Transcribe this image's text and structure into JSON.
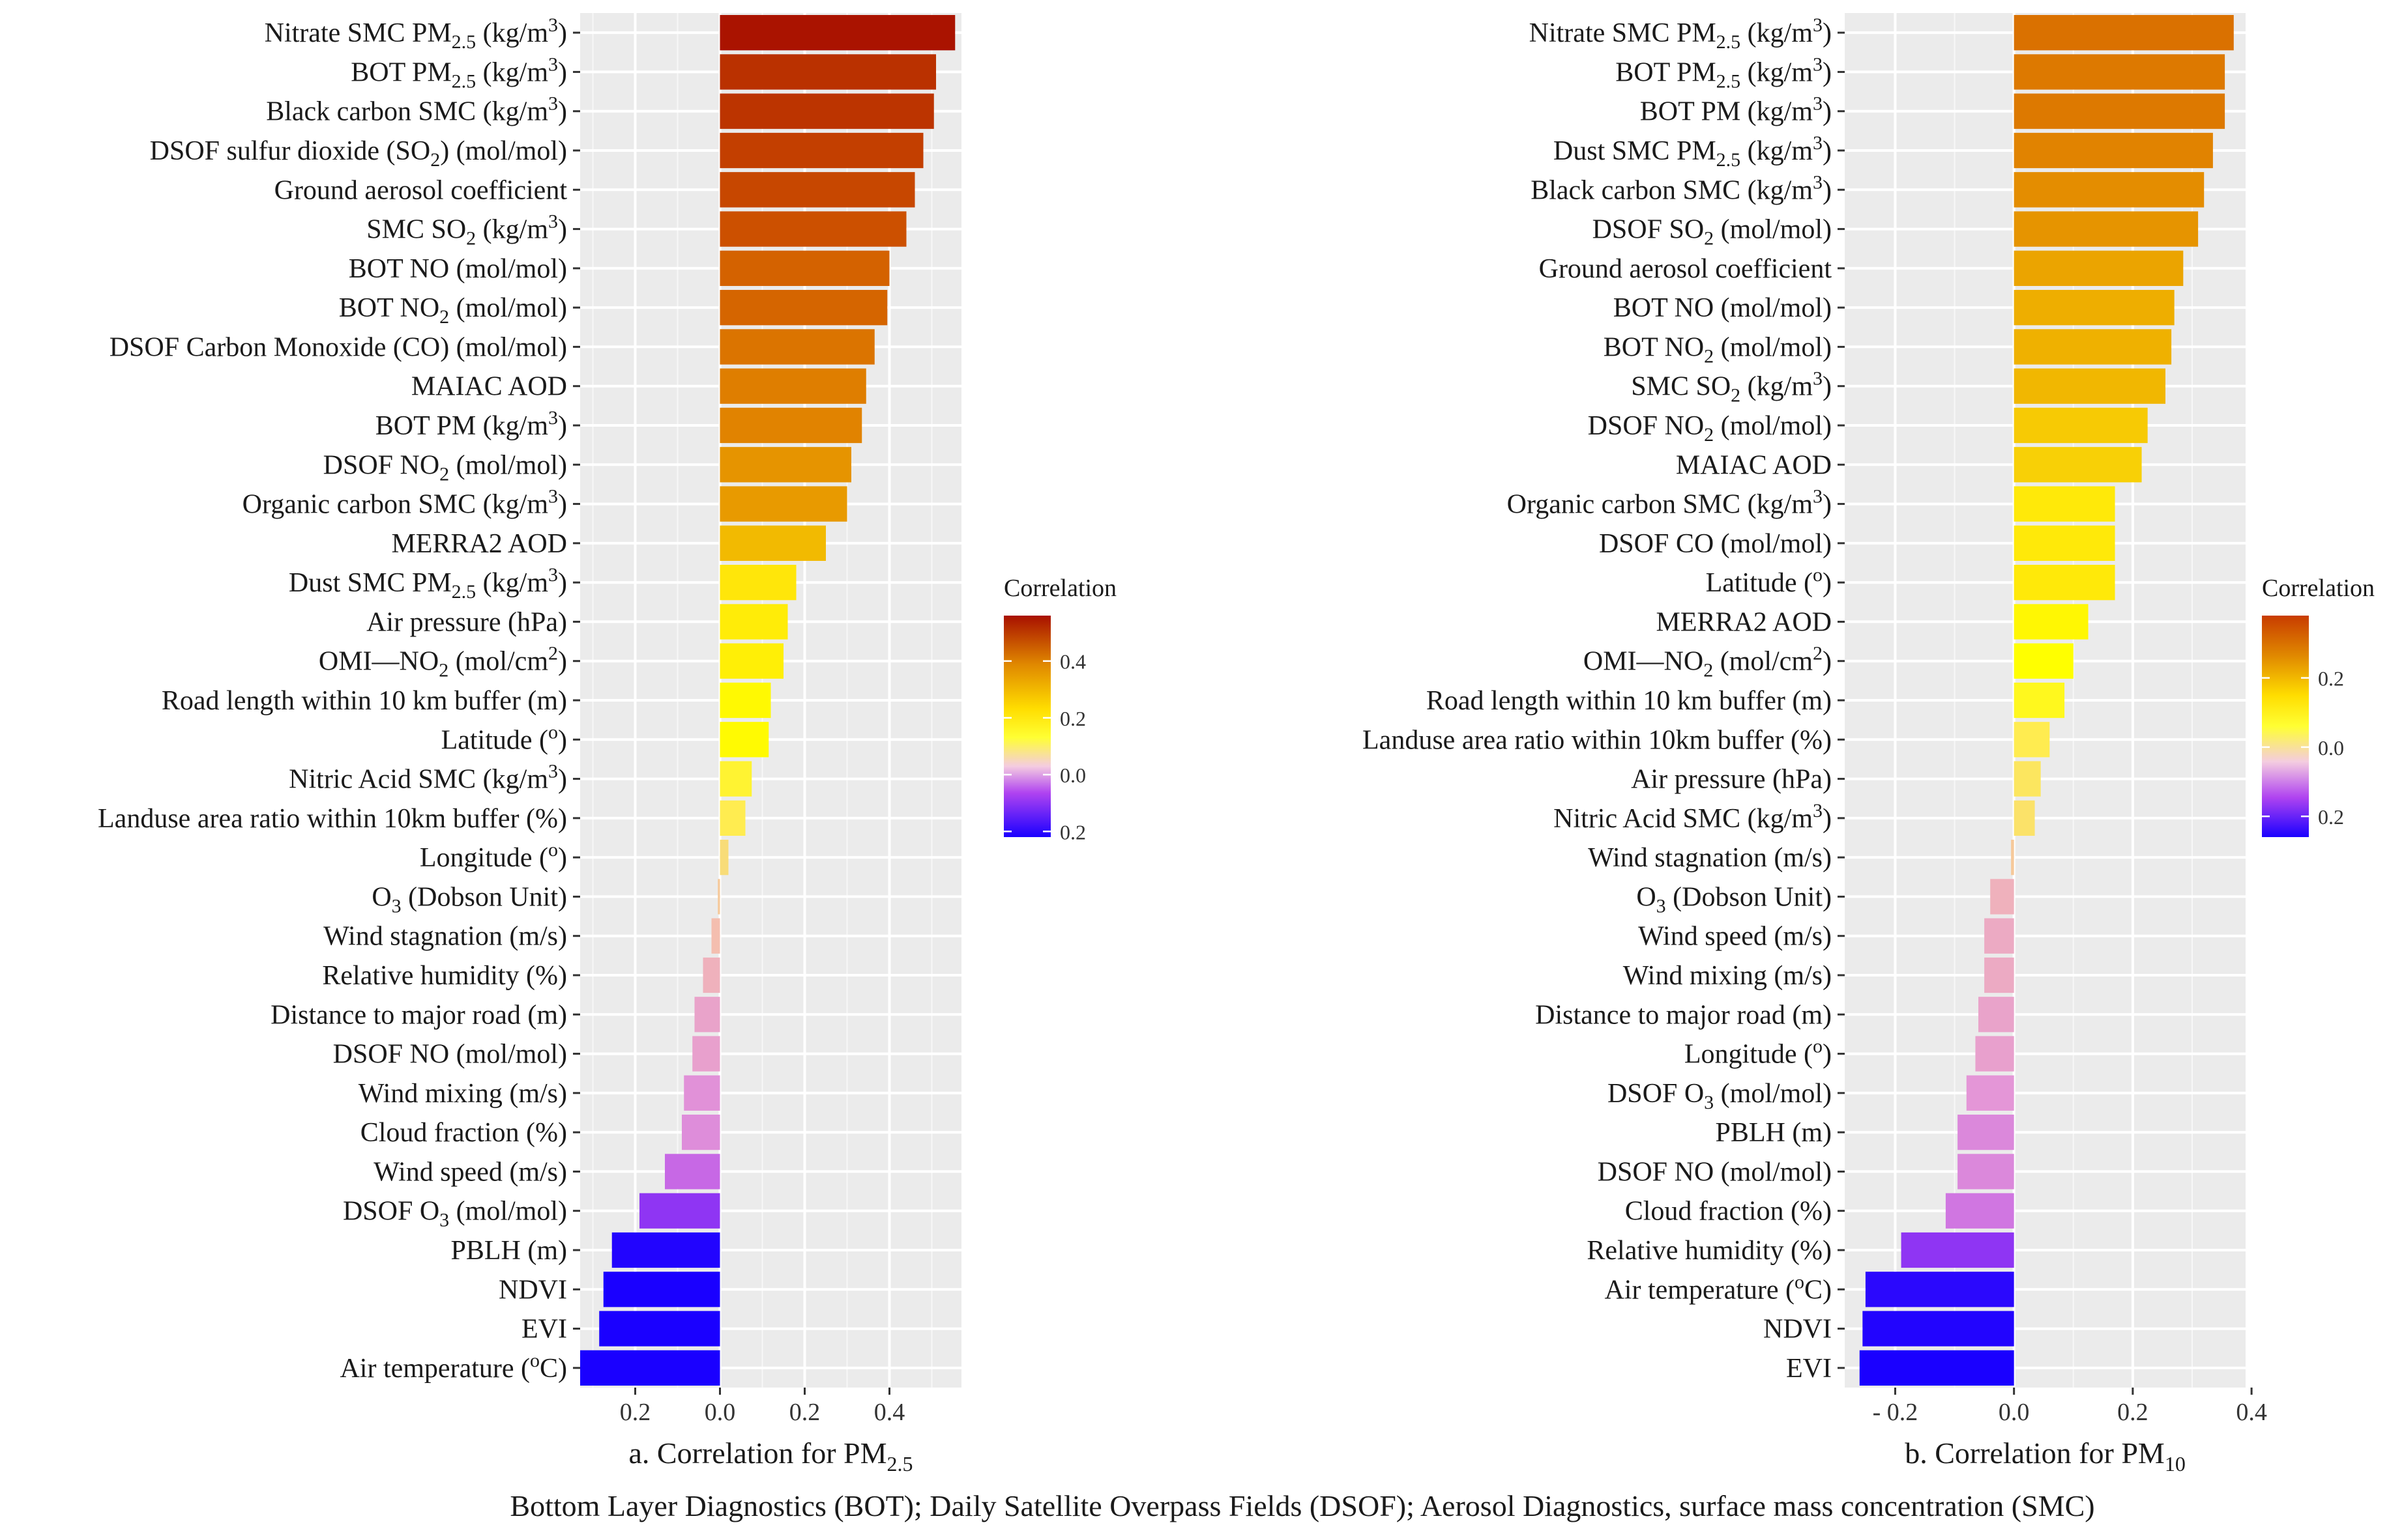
{
  "chart_data": [
    {
      "type": "bar",
      "orientation": "horizontal",
      "panel": "a",
      "xlabel": "a. Correlation for PM",
      "xlabel_sub": "2.5",
      "xlim": [
        -0.33,
        0.57
      ],
      "xticks": [
        {
          "value": -0.2,
          "label": "0.2"
        },
        {
          "value": 0.0,
          "label": "0.0"
        },
        {
          "value": 0.2,
          "label": "0.2"
        },
        {
          "value": 0.4,
          "label": "0.4"
        }
      ],
      "legend": {
        "title": "Correlation",
        "range": [
          -0.22,
          0.56
        ],
        "ticks": [
          {
            "value": 0.4,
            "label": "0.4"
          },
          {
            "value": 0.2,
            "label": "0.2"
          },
          {
            "value": 0.0,
            "label": "0.0"
          },
          {
            "value": -0.2,
            "label": "0.2"
          }
        ]
      },
      "bars": [
        {
          "label": "Nitrate SMC PM<sub>2.5</sub> (kg/m<sup>3</sup>)",
          "value": 0.555
        },
        {
          "label": "BOT PM<sub>2.5</sub> (kg/m<sup>3</sup>)",
          "value": 0.51
        },
        {
          "label": "Black carbon SMC (kg/m<sup>3</sup>)",
          "value": 0.505
        },
        {
          "label": "DSOF  sulfur dioxide (SO<sub>2</sub>) (mol/mol)",
          "value": 0.48
        },
        {
          "label": "Ground aerosol coefficient",
          "value": 0.46
        },
        {
          "label": "SMC SO<sub>2</sub> (kg/m<sup>3</sup>)",
          "value": 0.44
        },
        {
          "label": "BOT NO (mol/mol)",
          "value": 0.4
        },
        {
          "label": "BOT NO<sub>2</sub> (mol/mol)",
          "value": 0.395
        },
        {
          "label": "DSOF  Carbon Monoxide (CO) (mol/mol)",
          "value": 0.365
        },
        {
          "label": "MAIAC AOD",
          "value": 0.345
        },
        {
          "label": "BOT PM (kg/m<sup>3</sup>)",
          "value": 0.335
        },
        {
          "label": "DSOF NO<sub>2</sub> (mol/mol)",
          "value": 0.31
        },
        {
          "label": "Organic carbon SMC (kg/m<sup>3</sup>)",
          "value": 0.3
        },
        {
          "label": "MERRA2 AOD",
          "value": 0.25
        },
        {
          "label": "Dust SMC PM<sub>2.5</sub> (kg/m<sup>3</sup>)",
          "value": 0.18
        },
        {
          "label": "Air pressure (hPa)",
          "value": 0.16
        },
        {
          "label": "OMI—NO<sub>2</sub> (mol/cm<sup>2</sup>)",
          "value": 0.15
        },
        {
          "label": "Road length within 10 km buffer (m)",
          "value": 0.12
        },
        {
          "label": "Latitude (<sup>o</sup>)",
          "value": 0.115
        },
        {
          "label": "Nitric Acid  SMC (kg/m<sup>3</sup>)",
          "value": 0.075
        },
        {
          "label": "Landuse area ratio within 10km buffer (%)",
          "value": 0.06
        },
        {
          "label": "Longitude (<sup>o</sup>)",
          "value": 0.02
        },
        {
          "label": "O<sub>3</sub> (Dobson Unit)",
          "value": -0.005
        },
        {
          "label": "Wind stagnation (m/s)",
          "value": -0.02
        },
        {
          "label": "Relative humidity (%)",
          "value": -0.04
        },
        {
          "label": "Distance to major road (m)",
          "value": -0.06
        },
        {
          "label": "DSOF NO (mol/mol)",
          "value": -0.065
        },
        {
          "label": "Wind mixing (m/s)",
          "value": -0.085
        },
        {
          "label": "Cloud fraction (%)",
          "value": -0.09
        },
        {
          "label": "Wind speed (m/s)",
          "value": -0.13
        },
        {
          "label": "DSOF O<sub>3</sub> (mol/mol)",
          "value": -0.19
        },
        {
          "label": "PBLH (m)",
          "value": -0.255
        },
        {
          "label": "NDVI",
          "value": -0.275
        },
        {
          "label": "EVI",
          "value": -0.285
        },
        {
          "label": "Air temperature (<sup>o</sup>C)",
          "value": -0.33
        }
      ]
    },
    {
      "type": "bar",
      "orientation": "horizontal",
      "panel": "b",
      "xlabel": "b. Correlation for PM",
      "xlabel_sub": "10",
      "xlim": [
        -0.285,
        0.39
      ],
      "xticks": [
        {
          "value": -0.2,
          "label": "- 0.2"
        },
        {
          "value": 0.0,
          "label": "0.0"
        },
        {
          "value": 0.2,
          "label": "0.2"
        },
        {
          "value": 0.4,
          "label": "0.4"
        }
      ],
      "legend": {
        "title": "Correlation",
        "range": [
          -0.26,
          0.38
        ],
        "ticks": [
          {
            "value": 0.2,
            "label": "0.2"
          },
          {
            "value": 0.0,
            "label": "0.0"
          },
          {
            "value": -0.2,
            "label": "0.2"
          }
        ]
      },
      "bars": [
        {
          "label": "Nitrate SMC PM<sub>2.5</sub> (kg/m<sup>3</sup>)",
          "value": 0.37
        },
        {
          "label": "BOT PM<sub>2.5</sub> (kg/m<sup>3</sup>)",
          "value": 0.355
        },
        {
          "label": "BOT PM (kg/m<sup>3</sup>)",
          "value": 0.355
        },
        {
          "label": "Dust SMC PM<sub>2.5</sub> (kg/m<sup>3</sup>)",
          "value": 0.335
        },
        {
          "label": "Black carbon SMC (kg/m<sup>3</sup>)",
          "value": 0.32
        },
        {
          "label": "DSOF  SO<sub>2</sub> (mol/mol)",
          "value": 0.31
        },
        {
          "label": "Ground aerosol coefficient",
          "value": 0.285
        },
        {
          "label": "BOT NO (mol/mol)",
          "value": 0.27
        },
        {
          "label": "BOT NO<sub>2</sub> (mol/mol)",
          "value": 0.265
        },
        {
          "label": "SMC SO<sub>2</sub> (kg/m<sup>3</sup>)",
          "value": 0.255
        },
        {
          "label": "DSOF NO<sub>2</sub> (mol/mol)",
          "value": 0.225
        },
        {
          "label": "MAIAC AOD",
          "value": 0.215
        },
        {
          "label": "Organic carbon SMC (kg/m<sup>3</sup>)",
          "value": 0.17
        },
        {
          "label": "DSOF CO (mol/mol)",
          "value": 0.17
        },
        {
          "label": "Latitude (<sup>o</sup>)",
          "value": 0.17
        },
        {
          "label": "MERRA2 AOD",
          "value": 0.125
        },
        {
          "label": "OMI—NO<sub>2</sub> (mol/cm<sup>2</sup>)",
          "value": 0.1
        },
        {
          "label": "Road length within 10 km buffer (m)",
          "value": 0.085
        },
        {
          "label": "Landuse area ratio within 10km buffer (%)",
          "value": 0.06
        },
        {
          "label": "Air pressure (hPa)",
          "value": 0.045
        },
        {
          "label": "Nitric Acid  SMC (kg/m<sup>3</sup>)",
          "value": 0.035
        },
        {
          "label": "Wind stagnation (m/s)",
          "value": -0.005
        },
        {
          "label": "O<sub>3</sub> (Dobson Unit)",
          "value": -0.04
        },
        {
          "label": "Wind speed (m/s)",
          "value": -0.05
        },
        {
          "label": "Wind mixing (m/s)",
          "value": -0.05
        },
        {
          "label": "Distance to major road (m)",
          "value": -0.06
        },
        {
          "label": "Longitude (<sup>o</sup>)",
          "value": -0.065
        },
        {
          "label": "DSOF O<sub>3</sub> (mol/mol)",
          "value": -0.08
        },
        {
          "label": "PBLH (m)",
          "value": -0.095
        },
        {
          "label": "DSOF NO (mol/mol)",
          "value": -0.095
        },
        {
          "label": "Cloud fraction (%)",
          "value": -0.115
        },
        {
          "label": "Relative humidity (%)",
          "value": -0.19
        },
        {
          "label": "Air temperature (<sup>o</sup>C)",
          "value": -0.25
        },
        {
          "label": "NDVI",
          "value": -0.255
        },
        {
          "label": "EVI",
          "value": -0.26
        }
      ]
    }
  ],
  "caption": "Bottom Layer Diagnostics (BOT); Daily Satellite Overpass Fields (DSOF); Aerosol Diagnostics, surface mass concentration (SMC)"
}
